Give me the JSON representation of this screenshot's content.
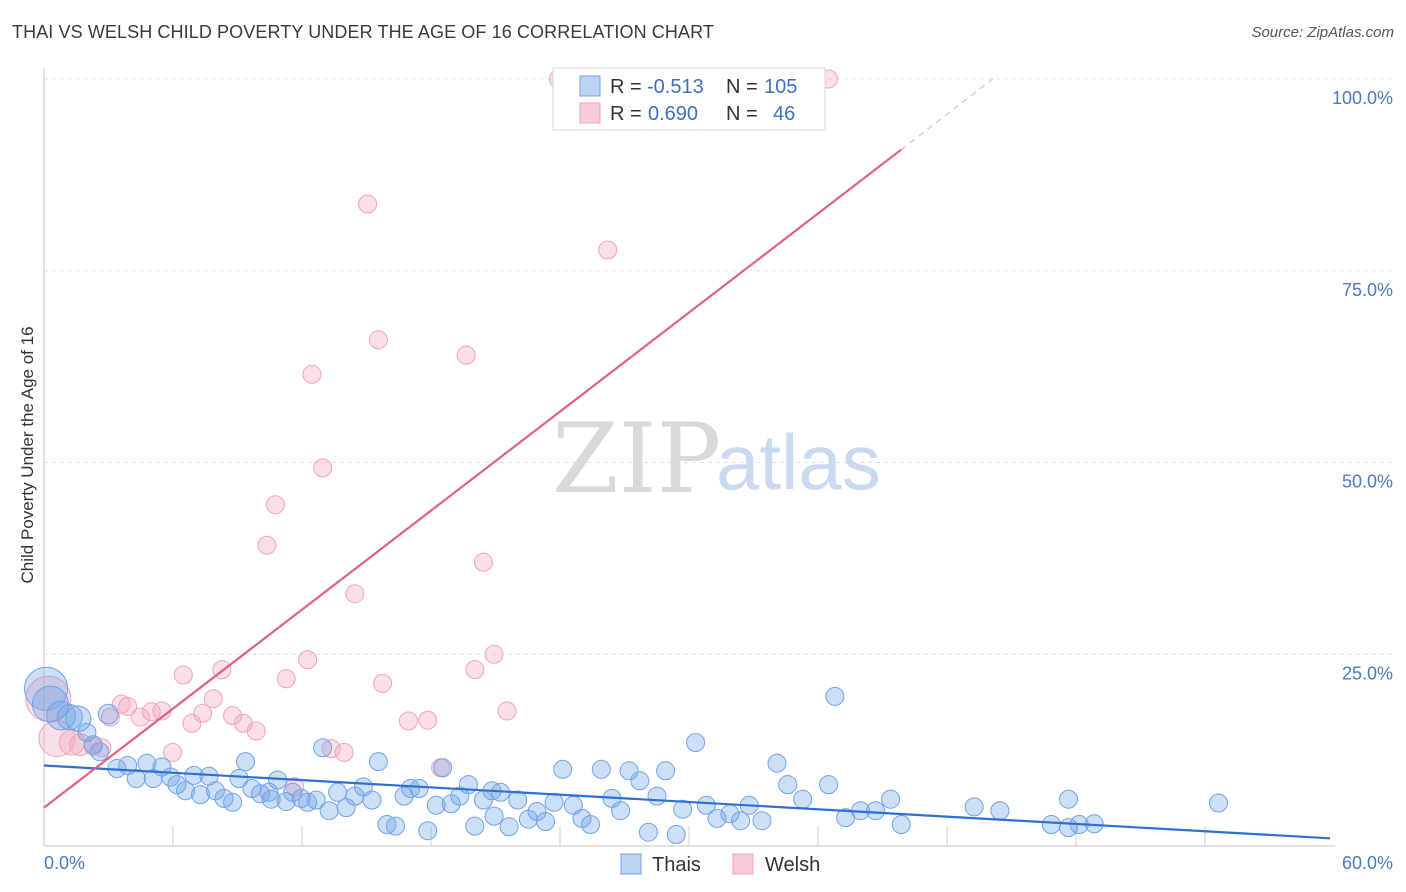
{
  "title": "THAI VS WELSH CHILD POVERTY UNDER THE AGE OF 16 CORRELATION CHART",
  "source": "Source: ZipAtlas.com",
  "watermark": {
    "zip": "ZIP",
    "atlas": "atlas"
  },
  "colors": {
    "blue": "#6fa3e6",
    "blue_line": "#2f6fd1",
    "pink": "#f2a3bc",
    "pink_line": "#e0608a"
  },
  "chart_data": {
    "type": "scatter",
    "title": "THAI VS WELSH CHILD POVERTY UNDER THE AGE OF 16 CORRELATION CHART",
    "xlabel": "",
    "ylabel": "Child Poverty Under the Age of 16",
    "xlim": [
      0,
      60
    ],
    "ylim": [
      0,
      100
    ],
    "x_tick_labels": [
      "0.0%",
      "60.0%"
    ],
    "y_ticks": [
      25,
      50,
      75,
      100
    ],
    "y_tick_labels": [
      "25.0%",
      "50.0%",
      "75.0%",
      "100.0%"
    ],
    "legend": [
      {
        "name": "Thais",
        "r_label": "R =",
        "r_value": "-0.513",
        "n_label": "N =",
        "n_value": "105"
      },
      {
        "name": "Welsh",
        "r_label": "R =",
        "r_value": "0.690",
        "n_label": "N =",
        "n_value": "46"
      }
    ],
    "series": [
      {
        "name": "Thais",
        "color": "#6fa3e6",
        "trend": {
          "x": [
            0,
            60
          ],
          "y": [
            10.5,
            1.0
          ]
        },
        "points": [
          [
            0.1,
            20.5,
            2.4
          ],
          [
            0.3,
            18.5,
            2.0
          ],
          [
            0.8,
            17.0,
            1.6
          ],
          [
            1.2,
            16.8,
            1.4
          ],
          [
            1.6,
            16.6,
            1.4
          ],
          [
            2.0,
            14.8,
            1.0
          ],
          [
            2.3,
            13.2,
            1.0
          ],
          [
            2.6,
            12.3,
            1.0
          ],
          [
            3.0,
            17.2,
            1.1
          ],
          [
            3.4,
            10.1,
            1.0
          ],
          [
            3.9,
            10.5,
            1.0
          ],
          [
            4.3,
            8.8,
            1.0
          ],
          [
            4.8,
            10.8,
            1.0
          ],
          [
            5.1,
            8.8,
            1.0
          ],
          [
            5.5,
            10.3,
            1.0
          ],
          [
            5.9,
            9.0,
            1.0
          ],
          [
            6.2,
            8.0,
            1.0
          ],
          [
            6.6,
            7.2,
            1.0
          ],
          [
            7.0,
            9.2,
            1.0
          ],
          [
            7.3,
            6.7,
            1.0
          ],
          [
            7.7,
            9.1,
            1.0
          ],
          [
            8.0,
            7.2,
            1.0
          ],
          [
            8.4,
            6.2,
            1.0
          ],
          [
            8.8,
            5.7,
            1.0
          ],
          [
            9.1,
            8.8,
            1.0
          ],
          [
            9.4,
            11.0,
            1.0
          ],
          [
            9.7,
            7.5,
            1.0
          ],
          [
            10.1,
            6.8,
            1.0
          ],
          [
            10.5,
            7.0,
            1.0
          ],
          [
            10.9,
            8.6,
            1.0
          ],
          [
            11.3,
            5.8,
            1.0
          ],
          [
            11.6,
            7.0,
            1.0
          ],
          [
            12.0,
            6.2,
            1.0
          ],
          [
            12.3,
            5.7,
            1.0
          ],
          [
            12.7,
            6.0,
            1.0
          ],
          [
            13.0,
            12.8,
            1.0
          ],
          [
            13.3,
            4.6,
            1.0
          ],
          [
            13.7,
            7.0,
            1.0
          ],
          [
            14.1,
            5.0,
            1.0
          ],
          [
            14.5,
            6.5,
            1.0
          ],
          [
            14.9,
            7.7,
            1.0
          ],
          [
            15.3,
            6.0,
            1.0
          ],
          [
            15.6,
            11.0,
            1.0
          ],
          [
            16.0,
            2.8,
            1.0
          ],
          [
            16.4,
            2.6,
            1.0
          ],
          [
            16.8,
            6.5,
            1.0
          ],
          [
            17.1,
            7.5,
            1.0
          ],
          [
            17.5,
            7.5,
            1.0
          ],
          [
            17.9,
            2.0,
            1.0
          ],
          [
            18.3,
            5.3,
            1.0
          ],
          [
            18.6,
            10.2,
            1.0
          ],
          [
            19.0,
            5.5,
            1.0
          ],
          [
            19.4,
            6.5,
            1.0
          ],
          [
            19.8,
            8.0,
            1.0
          ],
          [
            20.1,
            2.6,
            1.0
          ],
          [
            20.5,
            6.0,
            1.0
          ],
          [
            20.9,
            7.2,
            1.0
          ],
          [
            21.3,
            7.0,
            1.0
          ],
          [
            21.7,
            2.5,
            1.0
          ],
          [
            22.1,
            6.0,
            1.0
          ],
          [
            22.6,
            3.5,
            1.0
          ],
          [
            23.0,
            4.5,
            1.0
          ],
          [
            23.4,
            3.2,
            1.0
          ],
          [
            23.8,
            5.7,
            1.0
          ],
          [
            24.2,
            10.0,
            1.0
          ],
          [
            24.7,
            5.3,
            1.0
          ],
          [
            25.1,
            3.6,
            1.0
          ],
          [
            25.5,
            2.8,
            1.0
          ],
          [
            26.0,
            10.0,
            1.0
          ],
          [
            26.5,
            6.2,
            1.0
          ],
          [
            26.9,
            4.6,
            1.0
          ],
          [
            27.3,
            9.8,
            1.0
          ],
          [
            27.8,
            8.5,
            1.0
          ],
          [
            28.2,
            1.8,
            1.0
          ],
          [
            28.6,
            6.5,
            1.0
          ],
          [
            29.0,
            9.8,
            1.0
          ],
          [
            29.5,
            1.5,
            1.0
          ],
          [
            29.8,
            4.8,
            1.0
          ],
          [
            30.4,
            13.5,
            1.0
          ],
          [
            30.9,
            5.3,
            1.0
          ],
          [
            31.4,
            3.6,
            1.0
          ],
          [
            32.0,
            4.2,
            1.0
          ],
          [
            32.5,
            3.3,
            1.0
          ],
          [
            32.9,
            5.3,
            1.0
          ],
          [
            33.5,
            3.3,
            1.0
          ],
          [
            34.2,
            10.8,
            1.0
          ],
          [
            34.7,
            8.0,
            1.0
          ],
          [
            35.4,
            6.1,
            1.0
          ],
          [
            36.6,
            8.0,
            1.0
          ],
          [
            36.9,
            19.5,
            1.0
          ],
          [
            38.1,
            4.6,
            1.0
          ],
          [
            38.8,
            4.6,
            1.0
          ],
          [
            39.5,
            6.1,
            1.0
          ],
          [
            40.0,
            2.8,
            1.0
          ],
          [
            43.4,
            5.1,
            1.0
          ],
          [
            44.6,
            4.6,
            1.0
          ],
          [
            47.0,
            2.8,
            1.0
          ],
          [
            47.8,
            2.4,
            1.0
          ],
          [
            47.8,
            6.1,
            1.0
          ],
          [
            48.3,
            2.8,
            1.0
          ],
          [
            54.8,
            5.6,
            1.0
          ],
          [
            49.0,
            2.9,
            1.0
          ],
          [
            37.4,
            3.7,
            1.0
          ],
          [
            21.0,
            3.9,
            1.0
          ],
          [
            10.6,
            6.1,
            1.0
          ]
        ]
      },
      {
        "name": "Welsh",
        "color": "#f2a3bc",
        "trend": {
          "x": [
            0,
            40
          ],
          "y": [
            5.0,
            90.8
          ]
        },
        "trend_dashed": {
          "x": [
            40,
            44.5
          ],
          "y": [
            90.8,
            100.5
          ]
        },
        "points": [
          [
            0.2,
            19.2,
            2.5
          ],
          [
            0.6,
            14.0,
            2.0
          ],
          [
            1.3,
            13.5,
            1.4
          ],
          [
            1.7,
            13.2,
            1.2
          ],
          [
            2.3,
            13.0,
            1.0
          ],
          [
            2.7,
            12.8,
            1.0
          ],
          [
            3.1,
            16.8,
            1.0
          ],
          [
            3.6,
            18.5,
            1.0
          ],
          [
            3.9,
            18.2,
            1.0
          ],
          [
            4.5,
            16.8,
            1.0
          ],
          [
            5.0,
            17.5,
            1.0
          ],
          [
            5.5,
            17.6,
            1.0
          ],
          [
            6.0,
            12.2,
            1.0
          ],
          [
            6.5,
            22.3,
            1.0
          ],
          [
            6.9,
            16.0,
            1.0
          ],
          [
            7.4,
            17.3,
            1.0
          ],
          [
            7.9,
            19.2,
            1.0
          ],
          [
            8.3,
            23.0,
            1.0
          ],
          [
            8.8,
            17.0,
            1.0
          ],
          [
            9.3,
            16.0,
            1.0
          ],
          [
            9.9,
            15.0,
            1.0
          ],
          [
            10.4,
            39.2,
            1.0
          ],
          [
            10.8,
            44.5,
            1.0
          ],
          [
            11.3,
            21.8,
            1.0
          ],
          [
            11.7,
            7.7,
            1.0
          ],
          [
            12.3,
            24.3,
            1.0
          ],
          [
            12.5,
            61.5,
            1.0
          ],
          [
            13.0,
            49.3,
            1.0
          ],
          [
            13.4,
            12.7,
            1.0
          ],
          [
            14.0,
            12.2,
            1.0
          ],
          [
            14.5,
            32.9,
            1.0
          ],
          [
            15.1,
            83.7,
            1.0
          ],
          [
            15.6,
            66.0,
            1.0
          ],
          [
            15.8,
            21.2,
            1.0
          ],
          [
            17.0,
            16.3,
            1.0
          ],
          [
            17.9,
            16.4,
            1.0
          ],
          [
            18.5,
            10.2,
            1.0
          ],
          [
            19.7,
            64.0,
            1.0
          ],
          [
            20.1,
            23.0,
            1.0
          ],
          [
            20.5,
            37.0,
            1.0
          ],
          [
            21.0,
            25.0,
            1.0
          ],
          [
            21.6,
            17.6,
            1.0
          ],
          [
            24.0,
            100.0,
            1.0
          ],
          [
            26.3,
            77.7,
            1.0
          ],
          [
            31.2,
            100.0,
            1.0
          ],
          [
            36.6,
            100.0,
            1.0
          ]
        ]
      }
    ]
  }
}
